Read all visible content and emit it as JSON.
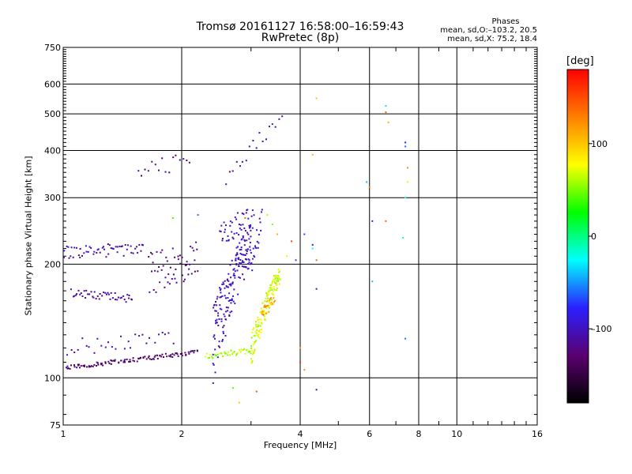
{
  "header": {
    "title": "Tromsø 20161127 16:58:00–16:59:43",
    "subtitle": "RwPretec (8p)",
    "phase_title": "Phases",
    "phase_line1": "mean, sd,O:–103.2, 20.5",
    "phase_line2": "mean, sd,X:  75.2, 18.4"
  },
  "colorbar": {
    "unit": "[deg]",
    "ticks": [
      "100",
      "0",
      "–100"
    ],
    "tick_values": [
      100,
      0,
      -100
    ],
    "range": [
      -180,
      180
    ],
    "colors": [
      "#000000",
      "#5b0070",
      "#2a20ff",
      "#00ffff",
      "#00ff00",
      "#ffff00",
      "#ff7f00",
      "#ff0000"
    ]
  },
  "chart_data": {
    "type": "scatter",
    "title": "Tromsø 20161127 16:58:00–16:59:43",
    "subtitle": "RwPretec (8p)",
    "xlabel": "Frequency [MHz]",
    "ylabel": "Stationary phase Virtual Height [km]",
    "x_scale": "log",
    "y_scale": "log",
    "xlim": [
      1,
      16
    ],
    "ylim": [
      75,
      750
    ],
    "xticks": [
      1,
      2,
      4,
      6,
      8,
      10,
      16
    ],
    "xtick_labels": [
      "1",
      "2",
      "4",
      "6",
      "8",
      "10",
      "16"
    ],
    "yticks": [
      75,
      100,
      200,
      300,
      400,
      500,
      600,
      750
    ],
    "ytick_labels": [
      "75",
      "100",
      "200",
      "300",
      "400",
      "500",
      "600",
      "750"
    ],
    "grid": true,
    "series": [
      {
        "segments": [
          {
            "f_range": [
              1.0,
              2.2
            ],
            "h_start": 106,
            "h_end": 117,
            "spread": 1.5,
            "count": 110,
            "phase": -130
          },
          {
            "f_range": [
              2.3,
              3.0
            ],
            "h_start": 114,
            "h_end": 118,
            "spread": 2,
            "count": 40,
            "phase": 60
          },
          {
            "f_range": [
              3.0,
              3.55
            ],
            "h_start": 118,
            "h_end": 190,
            "spread": 12,
            "count": 140,
            "phase": 70
          },
          {
            "f_range": [
              3.2,
              3.45
            ],
            "h_start": 150,
            "h_end": 160,
            "spread": 6,
            "count": 20,
            "phase": 120
          },
          {
            "f_range": [
              1.05,
              1.5
            ],
            "h_start": 168,
            "h_end": 162,
            "spread": 4,
            "count": 45,
            "phase": -115
          },
          {
            "f_range": [
              1.0,
              1.6
            ],
            "h_start": 215,
            "h_end": 218,
            "spread": 8,
            "count": 55,
            "phase": -105
          },
          {
            "f_range": [
              1.65,
              2.2
            ],
            "h_start": 190,
            "h_end": 210,
            "spread": 25,
            "count": 55,
            "phase": -120
          },
          {
            "f_range": [
              2.4,
              3.0
            ],
            "h_start": 125,
            "h_end": 230,
            "spread": 30,
            "count": 180,
            "phase": -100
          },
          {
            "f_range": [
              2.5,
              3.05
            ],
            "h_start": 240,
            "h_end": 270,
            "spread": 20,
            "count": 45,
            "phase": -100
          },
          {
            "f_range": [
              3.0,
              3.2
            ],
            "h_start": 200,
            "h_end": 260,
            "spread": 20,
            "count": 20,
            "phase": -95
          },
          {
            "f_range": [
              2.6,
              3.6
            ],
            "h_start": 340,
            "h_end": 490,
            "spread": 20,
            "count": 18,
            "phase": -110
          },
          {
            "f_range": [
              1.55,
              2.1
            ],
            "h_start": 350,
            "h_end": 380,
            "spread": 20,
            "count": 16,
            "phase": -120
          },
          {
            "f_range": [
              1.0,
              1.9
            ],
            "h_start": 120,
            "h_end": 128,
            "spread": 6,
            "count": 30,
            "phase": -105
          }
        ],
        "points": [
          {
            "f": 4.4,
            "h": 550,
            "phase": 100
          },
          {
            "f": 6.6,
            "h": 525,
            "phase": -30
          },
          {
            "f": 6.6,
            "h": 505,
            "phase": 140
          },
          {
            "f": 6.7,
            "h": 475,
            "phase": 110
          },
          {
            "f": 7.4,
            "h": 420,
            "phase": -80
          },
          {
            "f": 7.4,
            "h": 410,
            "phase": -60
          },
          {
            "f": 7.5,
            "h": 360,
            "phase": 120
          },
          {
            "f": 7.5,
            "h": 330,
            "phase": 70
          },
          {
            "f": 7.4,
            "h": 300,
            "phase": -20
          },
          {
            "f": 6.0,
            "h": 320,
            "phase": 130
          },
          {
            "f": 6.1,
            "h": 260,
            "phase": -80
          },
          {
            "f": 6.6,
            "h": 260,
            "phase": 140
          },
          {
            "f": 7.3,
            "h": 235,
            "phase": -10
          },
          {
            "f": 7.4,
            "h": 127,
            "phase": -60
          },
          {
            "f": 6.1,
            "h": 180,
            "phase": -40
          },
          {
            "f": 5.9,
            "h": 330,
            "phase": -40
          },
          {
            "f": 4.3,
            "h": 390,
            "phase": 110
          },
          {
            "f": 4.1,
            "h": 240,
            "phase": -70
          },
          {
            "f": 4.3,
            "h": 225,
            "phase": -90
          },
          {
            "f": 4.3,
            "h": 220,
            "phase": -20
          },
          {
            "f": 4.4,
            "h": 205,
            "phase": 140
          },
          {
            "f": 4.4,
            "h": 172,
            "phase": -110
          },
          {
            "f": 4.0,
            "h": 120,
            "phase": 110
          },
          {
            "f": 4.0,
            "h": 110,
            "phase": 160
          },
          {
            "f": 4.1,
            "h": 105,
            "phase": 120
          },
          {
            "f": 4.4,
            "h": 93,
            "phase": -110
          },
          {
            "f": 3.1,
            "h": 92,
            "phase": 150
          },
          {
            "f": 2.7,
            "h": 94,
            "phase": 40
          },
          {
            "f": 2.8,
            "h": 86,
            "phase": 100
          },
          {
            "f": 3.4,
            "h": 255,
            "phase": 50
          },
          {
            "f": 3.3,
            "h": 270,
            "phase": 60
          },
          {
            "f": 3.5,
            "h": 240,
            "phase": 110
          },
          {
            "f": 3.9,
            "h": 205,
            "phase": -70
          },
          {
            "f": 3.8,
            "h": 230,
            "phase": 150
          },
          {
            "f": 2.9,
            "h": 265,
            "phase": 140
          },
          {
            "f": 3.7,
            "h": 210,
            "phase": 70
          },
          {
            "f": 1.3,
            "h": 226,
            "phase": -120
          },
          {
            "f": 1.9,
            "h": 265,
            "phase": 40
          },
          {
            "f": 2.2,
            "h": 270,
            "phase": -60
          }
        ]
      }
    ]
  }
}
